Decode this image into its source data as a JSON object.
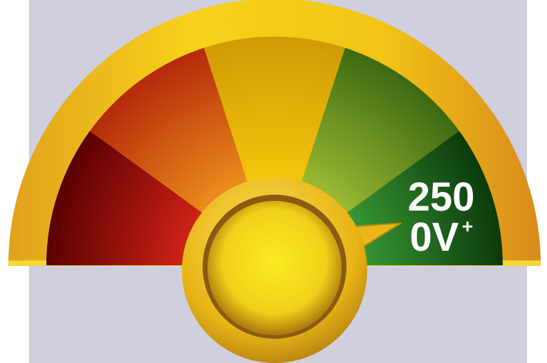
{
  "gauge_label": {
    "line1": "250",
    "line2": "0V",
    "superscript": "+"
  }
}
